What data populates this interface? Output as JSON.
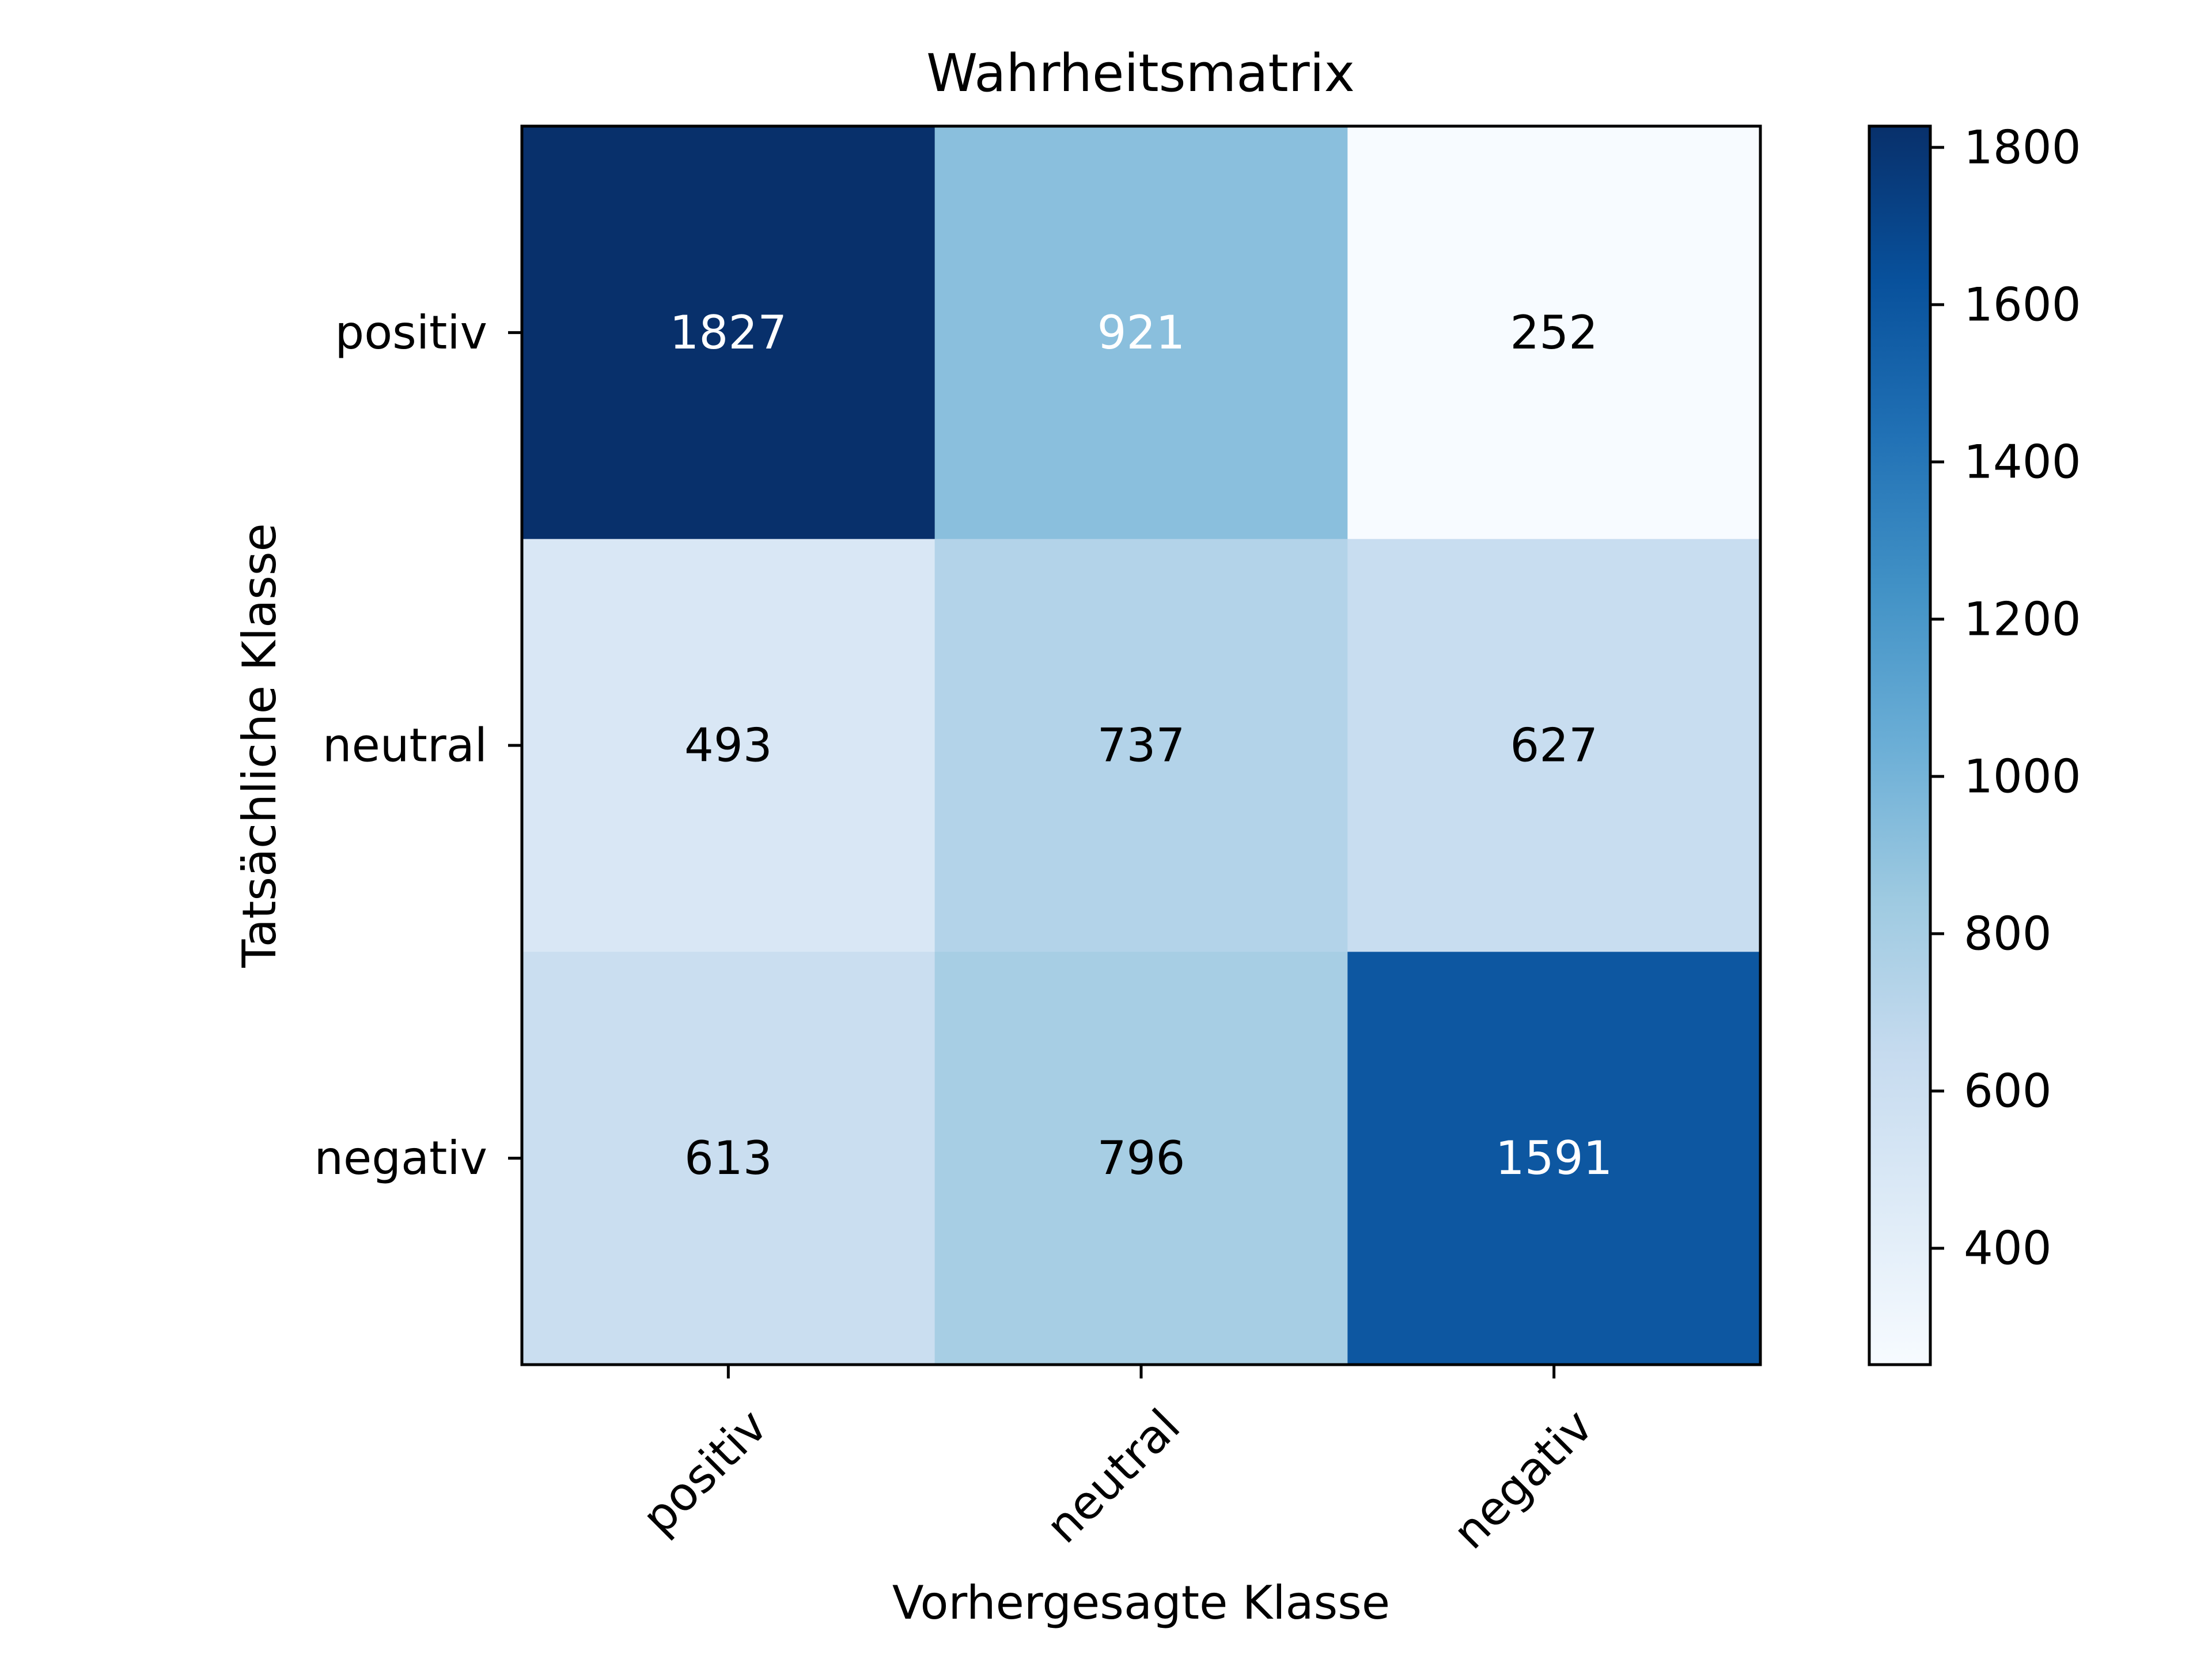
{
  "chart_data": {
    "type": "heatmap",
    "title": "Wahrheitsmatrix",
    "xlabel": "Vorhergesagte Klasse",
    "ylabel": "Tatsächliche Klasse",
    "x_categories": [
      "positiv",
      "neutral",
      "negativ"
    ],
    "y_categories": [
      "positiv",
      "neutral",
      "negativ"
    ],
    "values": [
      [
        1827,
        921,
        252
      ],
      [
        493,
        737,
        627
      ],
      [
        613,
        796,
        1591
      ]
    ],
    "colormap": "Blues",
    "colorbar": {
      "min": 252,
      "max": 1827,
      "ticks": [
        400,
        600,
        800,
        1000,
        1200,
        1400,
        1600,
        1800
      ]
    },
    "annotation_colors": {
      "on_dark": "#ffffff",
      "on_light": "#000000"
    },
    "grid": false
  }
}
